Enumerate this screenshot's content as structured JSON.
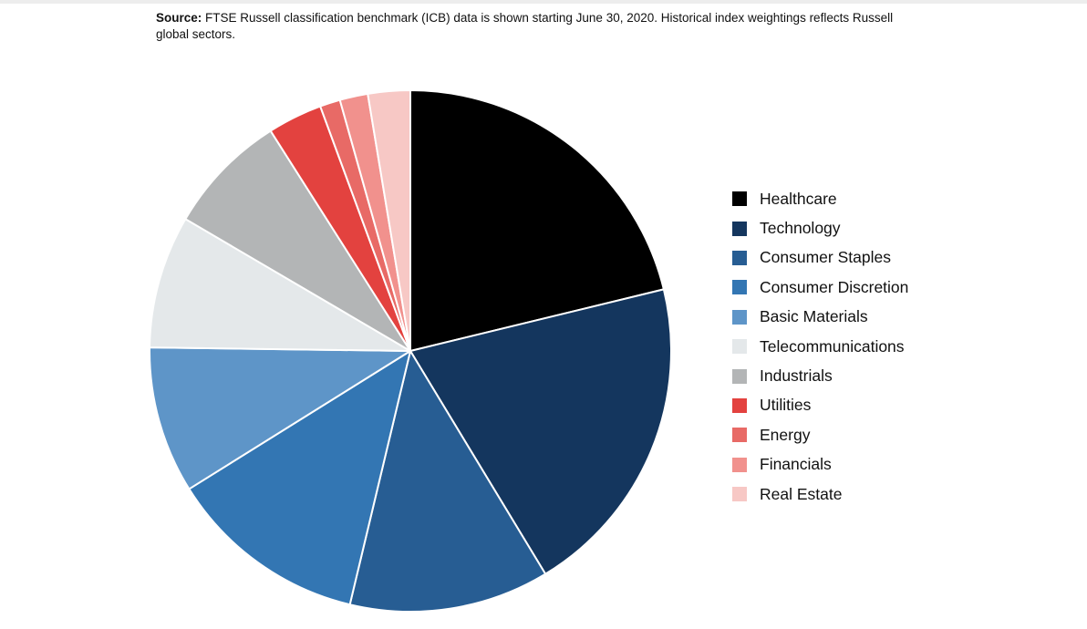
{
  "source_note": {
    "label": "Source:",
    "text": " FTSE Russell classification benchmark (ICB) data is shown starting June 30, 2020. Historical index weightings reflects Russell global sectors."
  },
  "chart_data": {
    "type": "pie",
    "title": "",
    "categories": [
      "Healthcare",
      "Technology",
      "Consumer Staples",
      "Consumer Discretion",
      "Basic Materials",
      "Telecommunications",
      "Industrials",
      "Utilities",
      "Energy",
      "Financials",
      "Real Estate"
    ],
    "values": [
      21.9,
      20.8,
      12.8,
      12.8,
      9.4,
      8.5,
      7.8,
      3.5,
      1.3,
      1.8,
      2.7
    ],
    "colors": [
      "#000000",
      "#14365e",
      "#275d93",
      "#3376b3",
      "#5e95c8",
      "#e4e8ea",
      "#b3b5b6",
      "#e3423f",
      "#e86a66",
      "#f1918d",
      "#f7c8c5"
    ],
    "start_angle_deg": 0,
    "direction": "clockwise",
    "slice_border_color": "#ffffff",
    "legend_position": "right"
  }
}
